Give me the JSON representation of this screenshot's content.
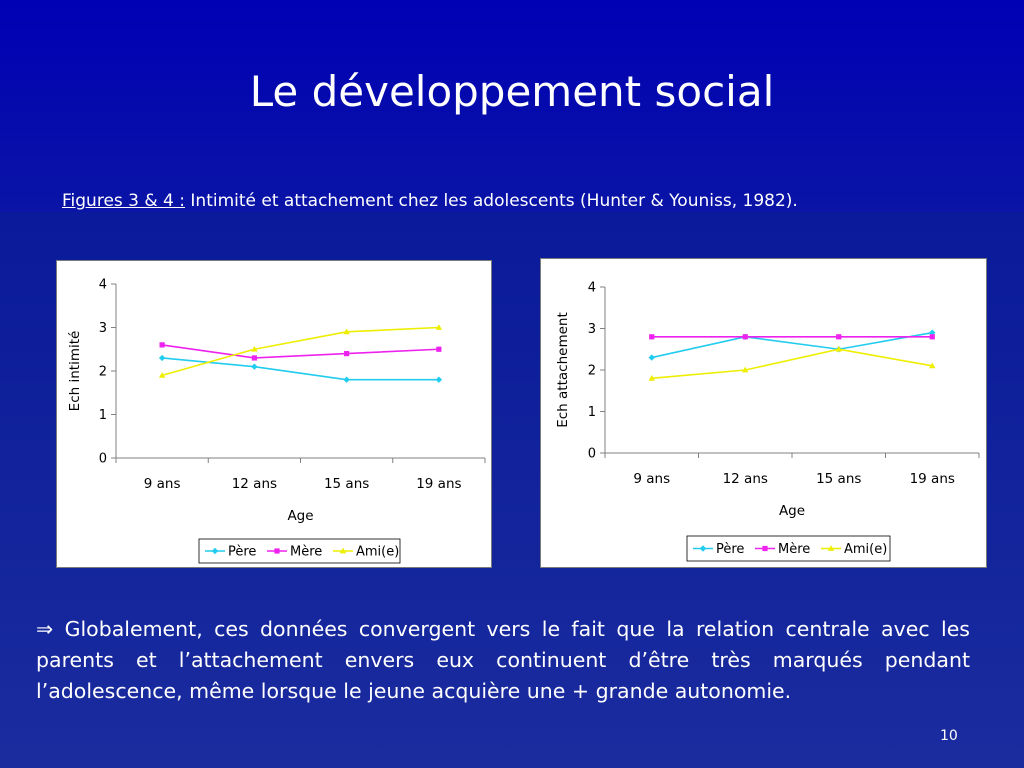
{
  "slide": {
    "title": "Le développement social",
    "caption_ref": "Figures 3 & 4 :",
    "caption_text": "Intimité et attachement chez les adolescents (Hunter & Youniss, 1982).",
    "conclusion": "Globalement, ces données convergent vers le fait que la relation centrale avec les parents et l’attachement envers eux continuent d’être très marqués pendant l’adolescence, même lorsque le jeune acquière une + grande autonomie.",
    "arrow_symbol": "⇒",
    "page_number": "10",
    "colors": {
      "background": "#0a1a9a",
      "text": "#ffffff"
    }
  },
  "chart_data": [
    {
      "type": "line",
      "title": "",
      "xlabel": "Age",
      "ylabel": "Ech intimité",
      "categories": [
        "9 ans",
        "12 ans",
        "15 ans",
        "19 ans"
      ],
      "ylim": [
        0,
        4
      ],
      "yticks": [
        0,
        1,
        2,
        3,
        4
      ],
      "grid": false,
      "legend": "bottom",
      "series": [
        {
          "name": "Père",
          "values": [
            2.3,
            2.1,
            1.8,
            1.8
          ],
          "color": "#22ccee",
          "marker": "diamond"
        },
        {
          "name": "Mère",
          "values": [
            2.6,
            2.3,
            2.4,
            2.5
          ],
          "color": "#ee22ee",
          "marker": "square"
        },
        {
          "name": "Ami(e)",
          "values": [
            1.9,
            2.5,
            2.9,
            3.0
          ],
          "color": "#eeee00",
          "marker": "triangle"
        }
      ]
    },
    {
      "type": "line",
      "title": "",
      "xlabel": "Age",
      "ylabel": "Ech attachement",
      "categories": [
        "9 ans",
        "12 ans",
        "15 ans",
        "19 ans"
      ],
      "ylim": [
        0,
        4
      ],
      "yticks": [
        0,
        1,
        2,
        3,
        4
      ],
      "grid": false,
      "legend": "bottom",
      "series": [
        {
          "name": "Père",
          "values": [
            2.3,
            2.8,
            2.5,
            2.9
          ],
          "color": "#22ccee",
          "marker": "diamond"
        },
        {
          "name": "Mère",
          "values": [
            2.8,
            2.8,
            2.8,
            2.8
          ],
          "color": "#ee22ee",
          "marker": "square"
        },
        {
          "name": "Ami(e)",
          "values": [
            1.8,
            2.0,
            2.5,
            2.1
          ],
          "color": "#eeee00",
          "marker": "triangle"
        }
      ]
    }
  ]
}
